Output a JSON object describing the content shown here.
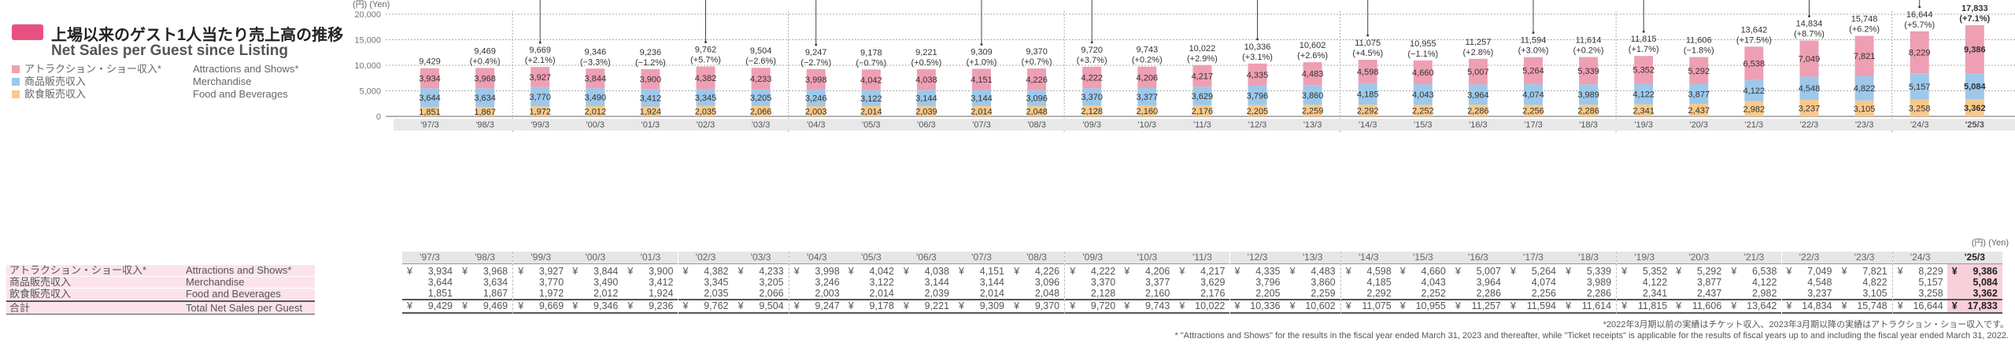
{
  "title": {
    "ja": "上場以来のゲスト1人当たり売上高の推移",
    "en": "Net Sales per Guest since Listing"
  },
  "legend": [
    {
      "ja": "アトラクション・ショー収入*",
      "en": "Attractions and Shows*",
      "color": "#ee9fb3"
    },
    {
      "ja": "商品販売収入",
      "en": "Merchandise",
      "color": "#9dc8ea"
    },
    {
      "ja": "飲食販売収入",
      "en": "Food and Beverages",
      "color": "#f8c98a"
    }
  ],
  "chart_data": {
    "type": "bar",
    "stacked": true,
    "title": "Net Sales per Guest since Listing",
    "ylabel": "(円) (Yen)",
    "ylim": [
      0,
      20000
    ],
    "yticks": [
      "0",
      "5,000",
      "10,000",
      "15,000",
      "20,000"
    ],
    "grid": true,
    "categories": [
      "'97/3",
      "'98/3",
      "'99/3",
      "'00/3",
      "'01/3",
      "'02/3",
      "'03/3",
      "'04/3",
      "'05/3",
      "'06/3",
      "'07/3",
      "'08/3",
      "'09/3",
      "'10/3",
      "'11/3",
      "'12/3",
      "'13/3",
      "'14/3",
      "'15/3",
      "'16/3",
      "'17/3",
      "'18/3",
      "'19/3",
      "'20/3",
      "'21/3",
      "'22/3",
      "'23/3",
      "'24/3",
      "'25/3"
    ],
    "series": [
      {
        "name": "Food and Beverages",
        "color": "#f8c98a",
        "values": [
          1851,
          1867,
          1972,
          2012,
          1924,
          2035,
          2066,
          2003,
          2014,
          2039,
          2014,
          2048,
          2128,
          2160,
          2176,
          2205,
          2259,
          2292,
          2252,
          2286,
          2256,
          2286,
          2341,
          2437,
          2982,
          3237,
          3105,
          3258,
          3362
        ]
      },
      {
        "name": "Merchandise",
        "color": "#9dc8ea",
        "values": [
          3644,
          3634,
          3770,
          3490,
          3412,
          3345,
          3205,
          3246,
          3122,
          3144,
          3144,
          3096,
          3370,
          3377,
          3629,
          3796,
          3860,
          4185,
          4043,
          3964,
          4074,
          3989,
          4122,
          3877,
          4122,
          4548,
          4822,
          5157,
          5084
        ]
      },
      {
        "name": "Attractions and Shows*",
        "color": "#ee9fb3",
        "values": [
          3934,
          3968,
          3927,
          3844,
          3900,
          4382,
          4233,
          3998,
          4042,
          4038,
          4151,
          4226,
          4222,
          4206,
          4217,
          4335,
          4483,
          4598,
          4660,
          5007,
          5264,
          5339,
          5352,
          5292,
          6538,
          7049,
          7821,
          8229,
          9386
        ]
      }
    ],
    "totals": [
      9429,
      9469,
      9669,
      9346,
      9236,
      9762,
      9504,
      9247,
      9178,
      9221,
      9309,
      9370,
      9720,
      9743,
      10022,
      10336,
      10602,
      11075,
      10955,
      11257,
      11594,
      11614,
      11815,
      11606,
      13642,
      14834,
      15748,
      16644,
      17833
    ],
    "changes": [
      "",
      "(+0.4%)",
      "(+2.1%)",
      "(−3.3%)",
      "(−1.2%)",
      "(+5.7%)",
      "(−2.6%)",
      "(−2.7%)",
      "(−0.7%)",
      "(+0.5%)",
      "(+1.0%)",
      "(+0.7%)",
      "(+3.7%)",
      "(+0.2%)",
      "(+2.9%)",
      "(+3.1%)",
      "(+2.6%)",
      "(+4.5%)",
      "(−1.1%)",
      "(+2.8%)",
      "(+3.0%)",
      "(+0.2%)",
      "(+1.7%)",
      "(−1.8%)",
      "(+17.5%)",
      "(+8.7%)",
      "(+6.2%)",
      "(+5.7%)",
      "(+7.1%)"
    ]
  },
  "table": {
    "unit": "(円) (Yen)",
    "currency": "¥",
    "rows": [
      {
        "ja": "アトラクション・ショー収入*",
        "en": "Attractions and Shows*"
      },
      {
        "ja": "商品販売収入",
        "en": "Merchandise"
      },
      {
        "ja": "飲食販売収入",
        "en": "Food and Beverages"
      },
      {
        "ja": "合計",
        "en": "Total Net Sales per Guest"
      }
    ]
  },
  "notes": {
    "ja": "*2022年3月期以前の実績はチケット収入、2023年3月期以降の実績はアトラクション・ショー収入です。",
    "en": "* \"Attractions and Shows\" for the results in the fiscal year ended March 31, 2023 and thereafter, while \"Ticket receipts\" is applicable for the results of fiscal years up to and including the fiscal year ended March 31, 2022."
  }
}
